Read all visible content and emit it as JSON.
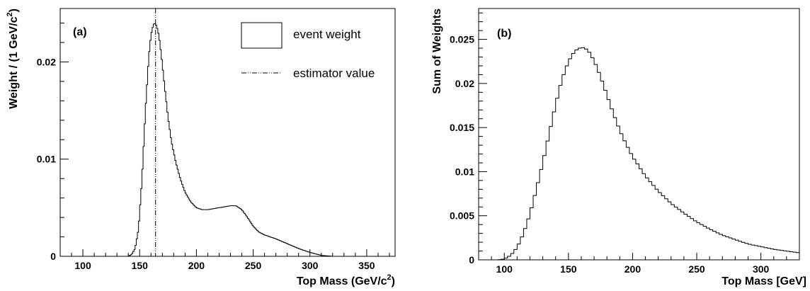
{
  "chart_data": [
    {
      "type": "histogram",
      "panel_label": "(a)",
      "xlabel": "Top Mass (GeV/c²)",
      "xlabel_base": "Top Mass (GeV/c",
      "xlabel_sup": "2",
      "xlabel_close": ")",
      "ylabel": "Weight / (1 GeV/c²)",
      "ylabel_base": "Weight / (1 GeV/c",
      "ylabel_sup": "2",
      "ylabel_close": ")",
      "xlim": [
        80,
        375
      ],
      "ylim": [
        0,
        0.0255
      ],
      "xticks": [
        100,
        150,
        200,
        250,
        300,
        350
      ],
      "xtick_labels": [
        "100",
        "150",
        "200",
        "250",
        "300",
        "350"
      ],
      "yticks": [
        0,
        0.01,
        0.02
      ],
      "ytick_labels": [
        "0",
        "0.01",
        "0.02"
      ],
      "bin_width": 1,
      "series": [
        {
          "name": "event weight",
          "x": [
            80,
            140,
            143,
            146,
            149,
            152,
            155,
            158,
            160,
            162,
            163,
            164,
            165,
            167,
            169,
            172,
            175,
            178,
            182,
            186,
            190,
            195,
            200,
            205,
            210,
            215,
            220,
            225,
            230,
            235,
            240,
            245,
            250,
            255,
            260,
            270,
            280,
            290,
            300,
            310,
            320,
            330
          ],
          "y": [
            0,
            0,
            0.0002,
            0.0008,
            0.0028,
            0.0078,
            0.0148,
            0.0205,
            0.0228,
            0.0238,
            0.024,
            0.0239,
            0.0237,
            0.0227,
            0.0208,
            0.0175,
            0.0143,
            0.0118,
            0.0096,
            0.0079,
            0.0066,
            0.0056,
            0.005,
            0.0048,
            0.0048,
            0.0049,
            0.005,
            0.0051,
            0.0052,
            0.0052,
            0.0048,
            0.004,
            0.0031,
            0.0025,
            0.0022,
            0.0018,
            0.0013,
            0.0008,
            0.0004,
            0.0001,
            0,
            0
          ]
        }
      ],
      "estimator_value": 164,
      "legend": {
        "position": "top-right",
        "entries": [
          {
            "label": "event weight",
            "style": "box"
          },
          {
            "label": "estimator value",
            "style": "dash-dot line"
          }
        ]
      }
    },
    {
      "type": "histogram",
      "panel_label": "(b)",
      "xlabel": "Top Mass [GeV]",
      "ylabel": "Sum of Weights",
      "xlim": [
        80,
        330
      ],
      "ylim": [
        0,
        0.0285
      ],
      "xticks": [
        100,
        150,
        200,
        250,
        300
      ],
      "xtick_labels": [
        "100",
        "150",
        "200",
        "250",
        "300"
      ],
      "yticks": [
        0,
        0.005,
        0.01,
        0.015,
        0.02,
        0.025
      ],
      "ytick_labels": [
        "0",
        "0.005",
        "0.01",
        "0.015",
        "0.02",
        "0.025"
      ],
      "bin_width": 2.5,
      "series": [
        {
          "x": [
            80,
            95,
            100,
            105,
            110,
            115,
            120,
            125,
            130,
            135,
            140,
            145,
            150,
            155,
            160,
            163,
            166,
            170,
            175,
            180,
            185,
            190,
            195,
            200,
            210,
            220,
            230,
            240,
            250,
            260,
            270,
            280,
            290,
            300,
            310,
            320,
            330
          ],
          "y": [
            0,
            0,
            0.0001,
            0.0005,
            0.0014,
            0.003,
            0.0052,
            0.008,
            0.011,
            0.0143,
            0.0176,
            0.0205,
            0.0225,
            0.0237,
            0.0241,
            0.024,
            0.0236,
            0.0226,
            0.0208,
            0.0187,
            0.0166,
            0.0147,
            0.0131,
            0.0117,
            0.0095,
            0.0078,
            0.0064,
            0.0053,
            0.0043,
            0.0035,
            0.0028,
            0.0023,
            0.0018,
            0.0015,
            0.0012,
            0.001,
            0.0008
          ]
        }
      ]
    }
  ]
}
